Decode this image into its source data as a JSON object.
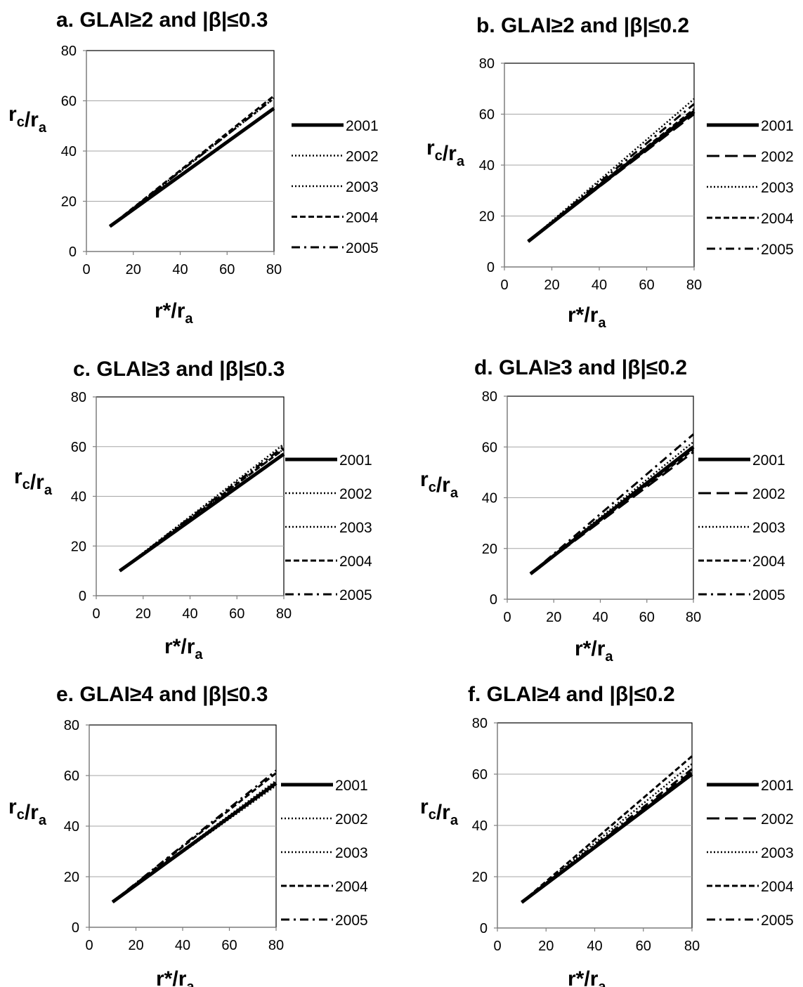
{
  "chart_data": [
    {
      "type": "line",
      "title": "a. GLAI≥2 and |β|≤0.3",
      "xlabel": "r*/r_a",
      "ylabel": "r_c/r_a",
      "xlim": [
        0,
        80
      ],
      "ylim": [
        0,
        80
      ],
      "xticks": [
        "0",
        "20",
        "40",
        "60",
        "80"
      ],
      "yticks": [
        "0",
        "20",
        "40",
        "60",
        "80"
      ],
      "grid": true,
      "legend_position": "right",
      "series": [
        {
          "name": "2001",
          "style": "solid",
          "x": [
            10,
            80
          ],
          "y": [
            10,
            57
          ]
        },
        {
          "name": "2002",
          "style": "dotted",
          "x": [
            10,
            80
          ],
          "y": [
            10,
            61
          ]
        },
        {
          "name": "2003",
          "style": "dotted",
          "x": [
            10,
            80
          ],
          "y": [
            10,
            61
          ]
        },
        {
          "name": "2004",
          "style": "dashed",
          "x": [
            10,
            80
          ],
          "y": [
            10,
            62
          ]
        },
        {
          "name": "2005",
          "style": "dashdot",
          "x": [
            10,
            80
          ],
          "y": [
            10,
            61
          ]
        }
      ]
    },
    {
      "type": "line",
      "title": "b. GLAI≥2 and |β|≤0.2",
      "xlabel": "r*/r_a",
      "ylabel": "r_c/r_a",
      "xlim": [
        0,
        80
      ],
      "ylim": [
        0,
        80
      ],
      "xticks": [
        "0",
        "20",
        "40",
        "60",
        "80"
      ],
      "yticks": [
        "0",
        "20",
        "40",
        "60",
        "80"
      ],
      "grid": true,
      "legend_position": "right",
      "series": [
        {
          "name": "2001",
          "style": "solid",
          "x": [
            10,
            80
          ],
          "y": [
            10,
            61
          ]
        },
        {
          "name": "2002",
          "style": "longdash",
          "x": [
            10,
            80
          ],
          "y": [
            10,
            60
          ]
        },
        {
          "name": "2003",
          "style": "dotted",
          "x": [
            10,
            80
          ],
          "y": [
            10,
            66
          ]
        },
        {
          "name": "2004",
          "style": "dashed",
          "x": [
            10,
            80
          ],
          "y": [
            10,
            62
          ]
        },
        {
          "name": "2005",
          "style": "dashdot",
          "x": [
            10,
            80
          ],
          "y": [
            10,
            64
          ]
        }
      ]
    },
    {
      "type": "line",
      "title": "c. GLAI≥3 and |β|≤0.3",
      "xlabel": "r*/r_a",
      "ylabel": "r_c/r_a",
      "xlim": [
        0,
        80
      ],
      "ylim": [
        0,
        80
      ],
      "xticks": [
        "0",
        "20",
        "40",
        "60",
        "80"
      ],
      "yticks": [
        "0",
        "20",
        "40",
        "60",
        "80"
      ],
      "grid": true,
      "legend_position": "right",
      "series": [
        {
          "name": "2001",
          "style": "solid",
          "x": [
            10,
            80
          ],
          "y": [
            10,
            57
          ]
        },
        {
          "name": "2002",
          "style": "dotted",
          "x": [
            10,
            80
          ],
          "y": [
            10,
            59
          ]
        },
        {
          "name": "2003",
          "style": "dotted",
          "x": [
            10,
            80
          ],
          "y": [
            10,
            61
          ]
        },
        {
          "name": "2004",
          "style": "dashed",
          "x": [
            10,
            80
          ],
          "y": [
            10,
            59
          ]
        },
        {
          "name": "2005",
          "style": "dashdot",
          "x": [
            10,
            80
          ],
          "y": [
            10,
            60
          ]
        }
      ]
    },
    {
      "type": "line",
      "title": "d. GLAI≥3 and |β|≤0.2",
      "xlabel": "r*/r_a",
      "ylabel": "r_c/r_a",
      "xlim": [
        0,
        80
      ],
      "ylim": [
        0,
        80
      ],
      "xticks": [
        "0",
        "20",
        "40",
        "60",
        "80"
      ],
      "yticks": [
        "0",
        "20",
        "40",
        "60",
        "80"
      ],
      "grid": true,
      "legend_position": "right",
      "series": [
        {
          "name": "2001",
          "style": "solid",
          "x": [
            10,
            80
          ],
          "y": [
            10,
            60
          ]
        },
        {
          "name": "2002",
          "style": "longdash",
          "x": [
            10,
            80
          ],
          "y": [
            10,
            58
          ]
        },
        {
          "name": "2003",
          "style": "dotted",
          "x": [
            10,
            80
          ],
          "y": [
            10,
            62
          ]
        },
        {
          "name": "2004",
          "style": "dashed",
          "x": [
            10,
            80
          ],
          "y": [
            10,
            59
          ]
        },
        {
          "name": "2005",
          "style": "dashdot",
          "x": [
            10,
            80
          ],
          "y": [
            10,
            65
          ]
        }
      ]
    },
    {
      "type": "line",
      "title": "e. GLAI≥4 and |β|≤0.3",
      "xlabel": "r*/r_a",
      "ylabel": "r_c/r_a",
      "xlim": [
        0,
        80
      ],
      "ylim": [
        0,
        80
      ],
      "xticks": [
        "0",
        "20",
        "40",
        "60",
        "80"
      ],
      "yticks": [
        "0",
        "20",
        "40",
        "60",
        "80"
      ],
      "grid": true,
      "legend_position": "right",
      "series": [
        {
          "name": "2001",
          "style": "solid",
          "x": [
            10,
            80
          ],
          "y": [
            10,
            57
          ]
        },
        {
          "name": "2002",
          "style": "dotted",
          "x": [
            10,
            80
          ],
          "y": [
            10,
            56
          ]
        },
        {
          "name": "2003",
          "style": "dotted",
          "x": [
            10,
            80
          ],
          "y": [
            10,
            58
          ]
        },
        {
          "name": "2004",
          "style": "dashed",
          "x": [
            10,
            80
          ],
          "y": [
            10,
            61
          ]
        },
        {
          "name": "2005",
          "style": "dashdot",
          "x": [
            10,
            80
          ],
          "y": [
            10,
            62
          ]
        }
      ]
    },
    {
      "type": "line",
      "title": "f. GLAI≥4 and |β|≤0.2",
      "xlabel": "r*/r_a",
      "ylabel": "r_c/r_a",
      "xlim": [
        0,
        80
      ],
      "ylim": [
        0,
        80
      ],
      "xticks": [
        "0",
        "20",
        "40",
        "60",
        "80"
      ],
      "yticks": [
        "0",
        "20",
        "40",
        "60",
        "80"
      ],
      "grid": true,
      "legend_position": "right",
      "series": [
        {
          "name": "2001",
          "style": "solid",
          "x": [
            10,
            80
          ],
          "y": [
            10,
            60
          ]
        },
        {
          "name": "2002",
          "style": "longdash",
          "x": [
            10,
            80
          ],
          "y": [
            10,
            61
          ]
        },
        {
          "name": "2003",
          "style": "dotted",
          "x": [
            10,
            80
          ],
          "y": [
            10,
            64
          ]
        },
        {
          "name": "2004",
          "style": "dashed",
          "x": [
            10,
            80
          ],
          "y": [
            10,
            67
          ]
        },
        {
          "name": "2005",
          "style": "dashdot",
          "x": [
            10,
            80
          ],
          "y": [
            10,
            62
          ]
        }
      ]
    }
  ]
}
